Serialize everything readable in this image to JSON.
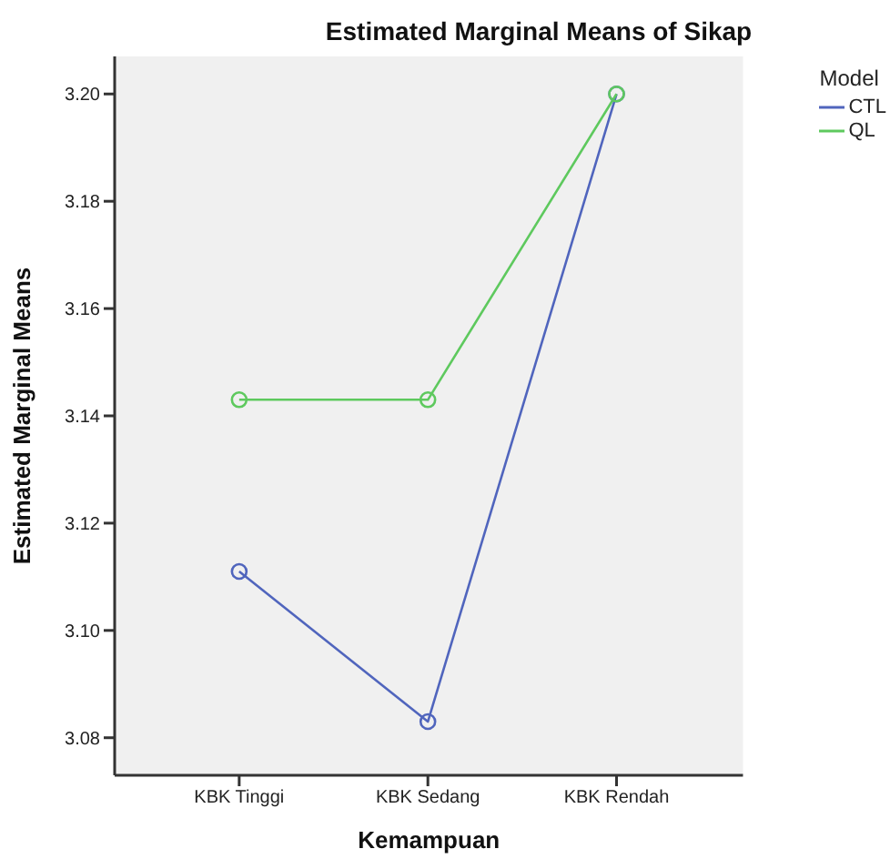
{
  "chart_data": {
    "type": "line",
    "title": "Estimated Marginal Means of Sikap",
    "xlabel": "Kemampuan",
    "ylabel": "Estimated Marginal Means",
    "legend_title": "Model",
    "categories": [
      "KBK Tinggi",
      "KBK Sedang",
      "KBK Rendah"
    ],
    "series": [
      {
        "name": "CTL",
        "color": "#5065bd",
        "values": [
          3.111,
          3.083,
          3.2
        ]
      },
      {
        "name": "QL",
        "color": "#5ec95e",
        "values": [
          3.143,
          3.143,
          3.2
        ]
      }
    ],
    "ylim": [
      3.073,
      3.207
    ],
    "yticks": [
      3.08,
      {
        "value": 3.1,
        "label": "3.10"
      },
      3.12,
      3.14,
      3.16,
      3.18,
      {
        "value": 3.2,
        "label": "3.20"
      }
    ],
    "grid": false,
    "legend": "top right",
    "marker": "circle",
    "line_style": "solid"
  }
}
